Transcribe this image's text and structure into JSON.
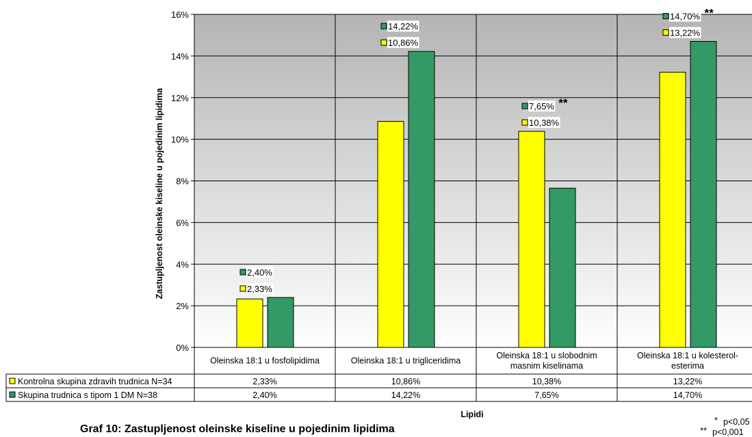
{
  "chart_data": {
    "type": "bar",
    "categories": [
      [
        "Oleinska  18:1 u fosfolipidima"
      ],
      [
        "Oleinska  18:1 u trigliceridima"
      ],
      [
        "Oleinska  18:1 u slobodnim",
        "masnim kiselinama"
      ],
      [
        "Oleinska  18:1 u kolesterol-",
        "esterima"
      ]
    ],
    "series": [
      {
        "name": "Kontrolna skupina zdravih trudnica N=34",
        "color": "#ffff00",
        "values": [
          2.33,
          10.86,
          10.38,
          13.22
        ],
        "labels": [
          "2,33%",
          "10,86%",
          "10,38%",
          "13,22%"
        ]
      },
      {
        "name": "Skupina trudnica s tipom 1 DM N=38",
        "color": "#339966",
        "values": [
          2.4,
          14.22,
          7.65,
          14.7
        ],
        "labels": [
          "2,40%",
          "14,22%",
          "7,65%",
          "14,70%"
        ],
        "marks": [
          "",
          "",
          "**",
          "**"
        ]
      }
    ],
    "ylim": [
      0,
      16
    ],
    "yticks": [
      "0%",
      "2%",
      "4%",
      "6%",
      "8%",
      "10%",
      "12%",
      "14%",
      "16%"
    ],
    "ylabel": "Zastupljenost oleinske kiseline u pojedinim lipidima",
    "xlabel": "Lipidi",
    "grid": true,
    "legend": "data-table"
  },
  "caption": "Graf 10: Zastupljenost oleinske kiseline u pojedinim lipidima",
  "significance": [
    {
      "mark": "*",
      "text": "p<0,05"
    },
    {
      "mark": "**",
      "text": "p<0,001"
    }
  ]
}
